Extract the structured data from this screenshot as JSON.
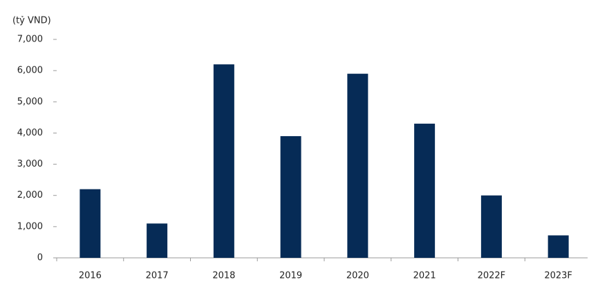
{
  "chart_data": {
    "type": "bar",
    "y_axis_label": "(tỷ VND)",
    "categories": [
      "2016",
      "2017",
      "2018",
      "2019",
      "2020",
      "2021",
      "2022F",
      "2023F"
    ],
    "values": [
      2200,
      1100,
      6200,
      3900,
      5900,
      4300,
      2000,
      720
    ],
    "color": "#062b56",
    "ylim": [
      0,
      7000
    ],
    "yticks": [
      0,
      {
        "value": 1000,
        "label": "1,000"
      },
      {
        "value": 2000,
        "label": "2,000"
      },
      {
        "value": 3000,
        "label": "3,000"
      },
      {
        "value": 4000,
        "label": "4,000"
      },
      {
        "value": 5000,
        "label": "5,000"
      },
      {
        "value": 6000,
        "label": "6,000"
      },
      {
        "value": 7000,
        "label": "7,000"
      }
    ],
    "grid": false
  }
}
